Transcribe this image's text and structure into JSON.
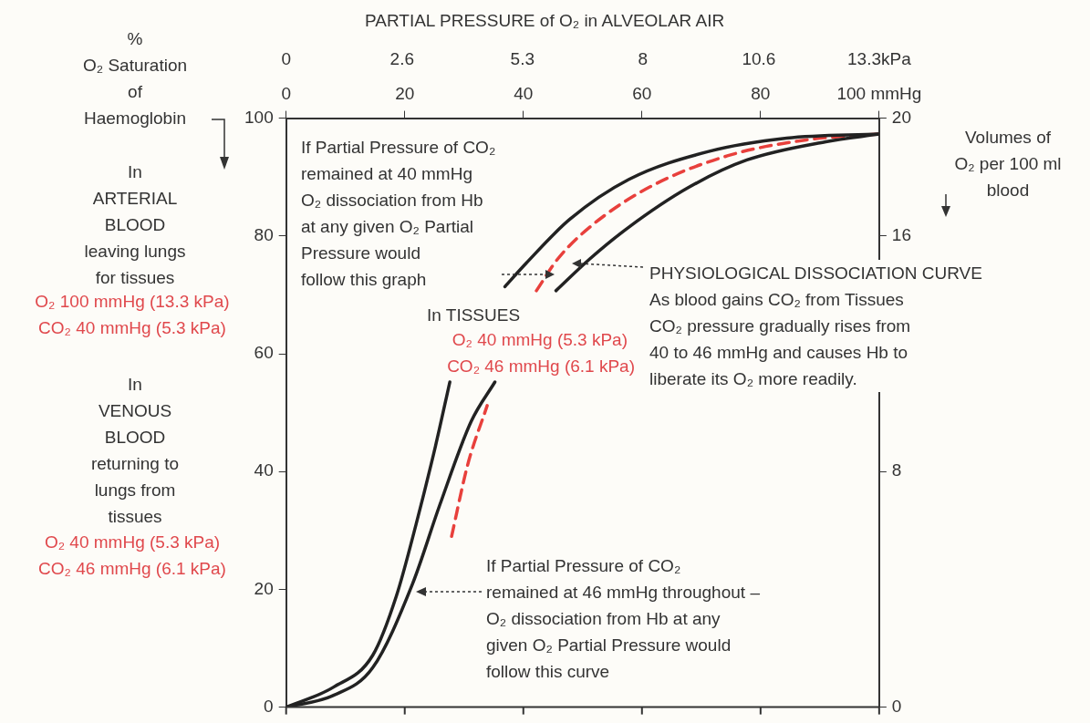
{
  "chart_data": {
    "type": "line",
    "xlabel": "PARTIAL PRESSURE of O₂ in ALVEOLAR AIR",
    "ylabel": "%\nO₂ Saturation\nof\nHaemoglobin",
    "y2label": "Volumes of\nO₂ per 100 ml\nblood",
    "xlim": [
      0,
      100
    ],
    "xticks": [
      0,
      20,
      40,
      60,
      80,
      {
        "value": 100,
        "label": "100 mmHg"
      }
    ],
    "x2lim": [
      0,
      13.3
    ],
    "x2ticks": [
      0,
      2.6,
      5.3,
      8,
      10.6,
      {
        "value": 13.3,
        "label": "13.3kPa"
      }
    ],
    "ylim": [
      0,
      100
    ],
    "yticks": [
      0,
      20,
      40,
      60,
      80,
      100
    ],
    "y2lim": [
      0,
      20
    ],
    "y2ticks": [
      0,
      8,
      16,
      20
    ],
    "grid": false,
    "legend": false,
    "marker": "none",
    "series": [
      {
        "color": "#222222",
        "line_style": "solid",
        "x": [
          0,
          8,
          14.6,
          18.6,
          21.9,
          25.2,
          27.6,
          32,
          36.9,
          40.5,
          47.8,
          57.8,
          71.1,
          84.4,
          100
        ],
        "values": [
          0,
          3.4,
          8.8,
          18.9,
          31,
          44.4,
          55.2,
          null,
          71.4,
          75.4,
          82.8,
          89.6,
          94.3,
          96.6,
          97.3
        ]
      },
      {
        "color": "#222222",
        "line_style": "solid",
        "x": [
          0,
          8,
          14.6,
          21.3,
          25.9,
          31.2,
          35.2,
          40,
          45.5,
          51.2,
          57.8,
          67.8,
          77.7,
          91,
          100
        ],
        "values": [
          0,
          2,
          6.7,
          20.9,
          34.3,
          48.5,
          55.2,
          null,
          70.7,
          76.1,
          81.5,
          88.2,
          92.9,
          96,
          97.3
        ]
      },
      {
        "color": "#e8403c",
        "line_style": "dashed",
        "x": [
          27.9,
          30.6,
          33.9,
          38,
          42.2,
          45.8,
          51.2,
          61.1,
          74.4,
          87.7,
          100
        ],
        "values": [
          29,
          41.1,
          51.2,
          null,
          70.7,
          76.1,
          81.5,
          88.2,
          93.6,
          96.3,
          97.3
        ]
      }
    ],
    "annotations": [
      {
        "text": "If Partial Pressure of CO₂\nremained at 40 mmHg\nO₂ dissociation from Hb\nat any given O₂ Partial\nPressure would\nfollow this graph"
      },
      {
        "text": "In TISSUES"
      },
      "O₂ 40 mmHg (5.3 kPa)",
      "CO₂ 46 mmHg (6.1 kPa)",
      {
        "text": "PHYSIOLOGICAL DISSOCIATION CURVE"
      },
      {
        "text": "As blood gains CO₂ from Tissues\nCO₂ pressure gradually rises from\n40 to 46 mmHg and causes Hb to\nliberate its O₂ more readily."
      },
      {
        "text": "If Partial Pressure of CO₂\nremained at 46 mmHg throughout –\nO₂ dissociation from Hb at any\ngiven O₂ Partial Pressure would\nfollow this curve"
      },
      {
        "text": "In\nARTERIAL\nBLOOD\nleaving lungs\nfor tissues"
      },
      "O₂ 100 mmHg (13.3 kPa)",
      "CO₂ 40 mmHg (5.3 kPa)",
      {
        "text": "In\nVENOUS\nBLOOD\nreturning to\nlungs from\ntissues"
      },
      "O₂ 40 mmHg (5.3 kPa)",
      "CO₂ 46 mmHg (6.1 kPa)"
    ]
  }
}
